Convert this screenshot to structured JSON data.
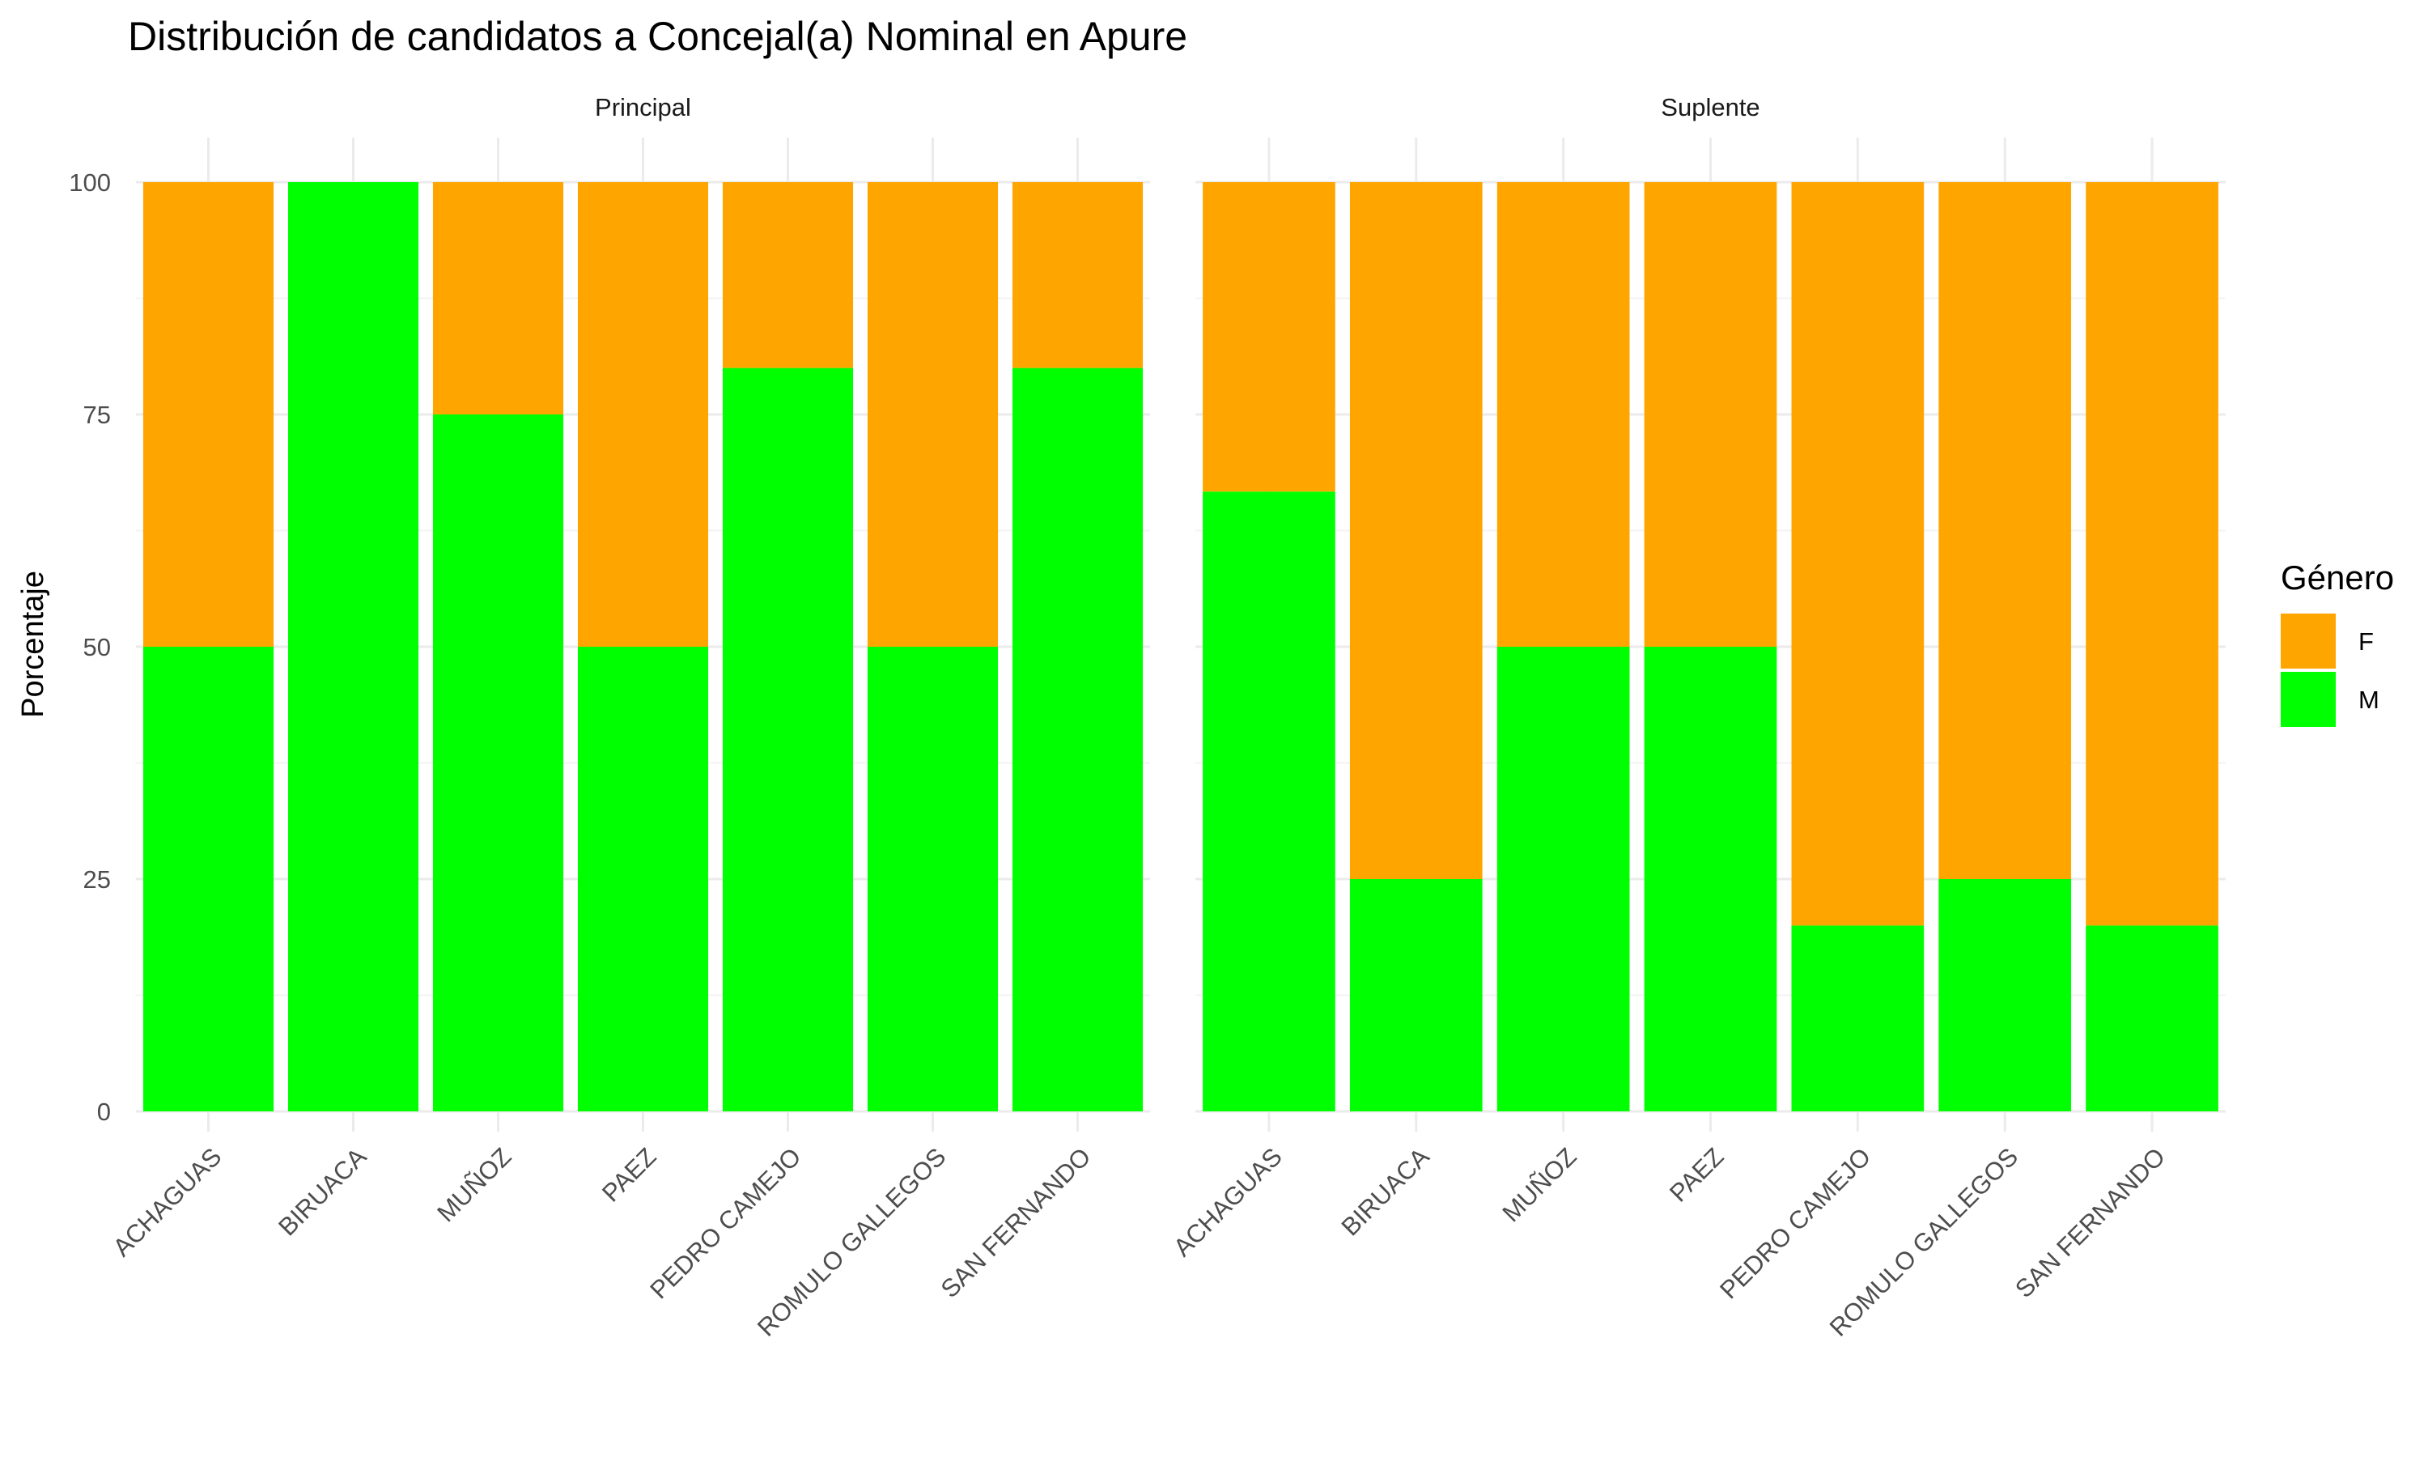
{
  "chart_data": {
    "type": "bar",
    "stacked": true,
    "title": "Distribución de candidatos a Concejal(a) Nominal en Apure",
    "xlabel": "",
    "ylabel": "Porcentaje",
    "ylim": [
      0,
      100
    ],
    "yticks": [
      0,
      25,
      50,
      75,
      100
    ],
    "grid": true,
    "legend": {
      "title": "Género",
      "position": "right"
    },
    "categories": [
      "ACHAGUAS",
      "BIRUACA",
      "MUÑOZ",
      "PAEZ",
      "PEDRO CAMEJO",
      "ROMULO GALLEGOS",
      "SAN FERNANDO"
    ],
    "colors": {
      "F": "#FFA500",
      "M": "#00FF00"
    },
    "panels": [
      {
        "name": "Principal",
        "series": [
          {
            "name": "F",
            "values": [
              50,
              0,
              25,
              50,
              20,
              50,
              20
            ]
          },
          {
            "name": "M",
            "values": [
              50,
              100,
              75,
              50,
              80,
              50,
              80
            ]
          }
        ]
      },
      {
        "name": "Suplente",
        "series": [
          {
            "name": "F",
            "values": [
              33.3,
              75,
              50,
              50,
              80,
              75,
              80
            ]
          },
          {
            "name": "M",
            "values": [
              66.7,
              25,
              50,
              50,
              20,
              25,
              20
            ]
          }
        ]
      }
    ]
  }
}
